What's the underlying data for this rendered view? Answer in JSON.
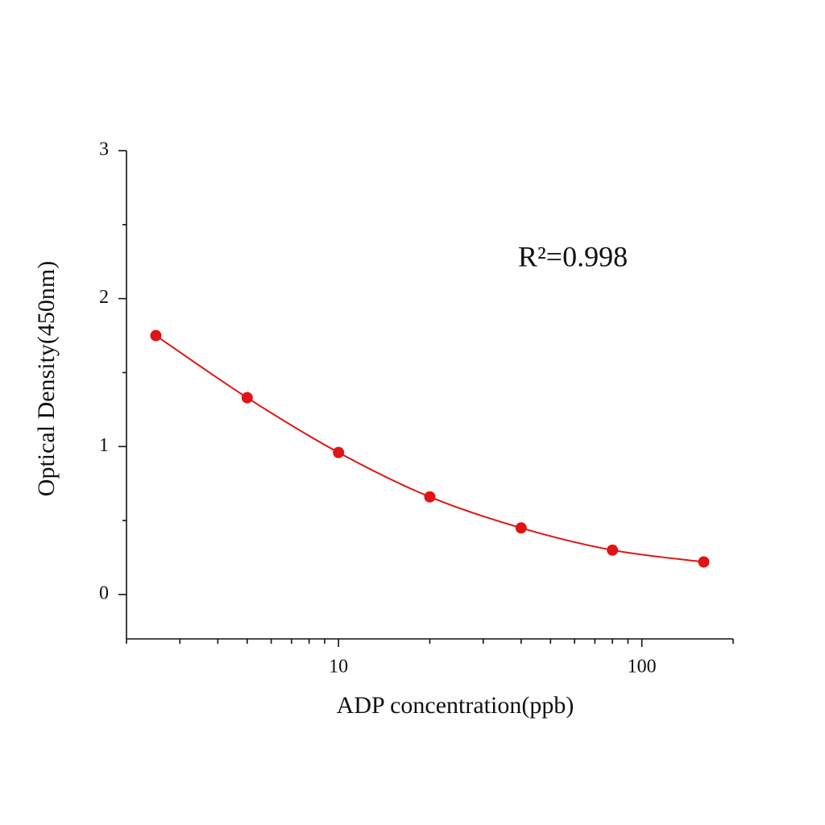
{
  "chart_data": {
    "type": "line",
    "markers": true,
    "smooth": true,
    "x_label": "ADP concentration(ppb)",
    "y_label": "Optical Density(450nm)",
    "annotation": "R²=0.998",
    "x": [
      2.5,
      5,
      10,
      20,
      40,
      80,
      160
    ],
    "values": [
      1.75,
      1.33,
      0.96,
      0.66,
      0.45,
      0.3,
      0.22
    ],
    "color": "#e01414",
    "xscale": "log",
    "xlim": [
      2,
      200
    ],
    "xticks": [
      10,
      100
    ],
    "ylim": [
      -0.3,
      3
    ],
    "yticks": [
      0,
      1,
      2,
      3
    ],
    "minor_ticks": true
  }
}
